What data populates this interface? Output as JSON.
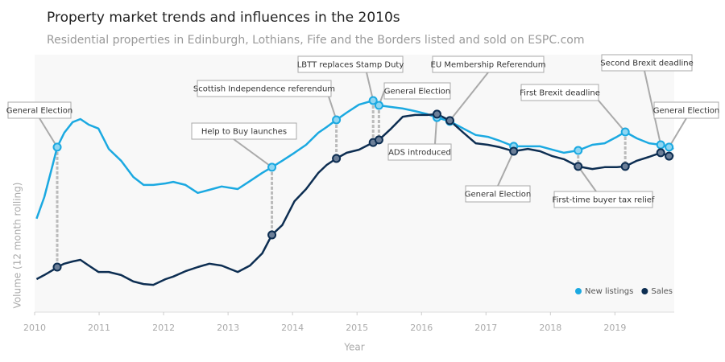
{
  "chart_data": {
    "type": "line",
    "title": "Property market trends and influences in the 2010s",
    "subtitle": "Residential properties in Edinburgh, Lothians, Fife and the Borders listed and sold on ESPC.com",
    "xlabel": "Year",
    "ylabel": "Volume  (12 month rolling)",
    "x": [
      2010.03,
      2010.15,
      2010.28,
      2010.35,
      2010.46,
      2010.59,
      2010.71,
      2010.84,
      2010.99,
      2011.15,
      2011.34,
      2011.53,
      2011.69,
      2011.84,
      2012.03,
      2012.15,
      2012.34,
      2012.53,
      2012.71,
      2012.9,
      2013.15,
      2013.34,
      2013.53,
      2013.68,
      2013.84,
      2014.03,
      2014.21,
      2014.4,
      2014.53,
      2014.68,
      2014.84,
      2015.03,
      2015.25,
      2015.34,
      2015.53,
      2015.71,
      2015.9,
      2016.09,
      2016.24,
      2016.44,
      2016.65,
      2016.84,
      2017.03,
      2017.21,
      2017.43,
      2017.65,
      2017.84,
      2018.03,
      2018.21,
      2018.43,
      2018.65,
      2018.84,
      2019.03,
      2019.16,
      2019.34,
      2019.53,
      2019.71,
      2019.84,
      2019.91
    ],
    "series": [
      {
        "name": "New listings",
        "color": "#1ba9e1",
        "values": [
          36.3,
          44.7,
          57.2,
          64.1,
          69.7,
          73.8,
          75,
          72.8,
          71.3,
          63.4,
          58.8,
          52.5,
          49.4,
          49.4,
          50,
          50.6,
          49.4,
          46.3,
          47.5,
          48.8,
          47.8,
          50.9,
          54.1,
          56.3,
          58.8,
          61.9,
          65,
          69.7,
          71.9,
          74.7,
          77.5,
          80.6,
          82.2,
          80.3,
          79.7,
          79.1,
          78.1,
          76.9,
          75.6,
          74.1,
          71.3,
          68.8,
          68.1,
          66.6,
          64.4,
          64.4,
          64.4,
          63.1,
          61.9,
          62.8,
          65,
          65.6,
          68.1,
          70,
          67.5,
          65.6,
          65,
          64.1,
          63.4
        ]
      },
      {
        "name": "Sales",
        "color": "#0d2e52",
        "values": [
          12.8,
          14.4,
          16.3,
          17.5,
          18.8,
          19.7,
          20.3,
          18.1,
          15.6,
          15.6,
          14.4,
          11.9,
          10.9,
          10.6,
          12.8,
          13.8,
          15.9,
          17.5,
          18.8,
          18.1,
          15.6,
          18.1,
          22.8,
          30,
          33.8,
          43.1,
          47.8,
          54.1,
          57.2,
          59.7,
          61.9,
          63.1,
          65.9,
          66.9,
          71.3,
          75.9,
          76.6,
          76.6,
          76.9,
          74.4,
          69.7,
          65.6,
          65,
          64.1,
          62.5,
          63.4,
          62.5,
          60.6,
          59.4,
          56.6,
          55.6,
          56.3,
          56.3,
          56.6,
          58.8,
          60.3,
          61.9,
          60.6,
          60.9
        ]
      }
    ],
    "xlim": [
      2010,
      2019.92
    ],
    "xticks": [
      2010,
      2011,
      2012,
      2013,
      2014,
      2015,
      2016,
      2017,
      2018,
      2019
    ],
    "ylim": [
      0,
      100
    ],
    "legend": "lower right",
    "annotations": [
      {
        "text": "General Election",
        "x": 2010.35
      },
      {
        "text": "Help to Buy launches",
        "x": 2013.68
      },
      {
        "text": "Scottish Independence referendum",
        "x": 2014.68
      },
      {
        "text": "LBTT replaces Stamp Duty",
        "x": 2015.25
      },
      {
        "text": "General Election",
        "x": 2015.34
      },
      {
        "text": "ADS introduced",
        "x": 2016.24
      },
      {
        "text": "EU Membership Referendum",
        "x": 2016.44
      },
      {
        "text": "General Election",
        "x": 2017.43
      },
      {
        "text": "First-time buyer tax relief",
        "x": 2018.43
      },
      {
        "text": "First Brexit deadline",
        "x": 2019.16
      },
      {
        "text": "Second Brexit deadline",
        "x": 2019.71
      },
      {
        "text": "General Election",
        "x": 2019.84
      }
    ]
  }
}
